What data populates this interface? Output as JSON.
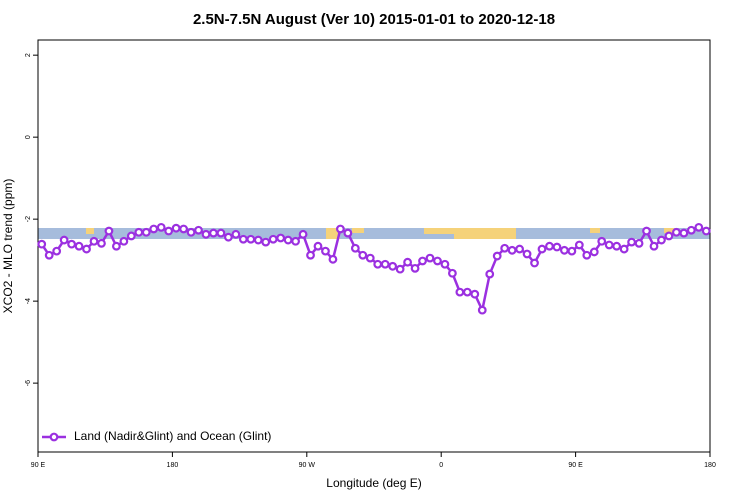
{
  "chart_data": {
    "type": "line",
    "title": "2.5N-7.5N August (Ver 10)   2015-01-01 to 2020-12-18",
    "x_label": "Longitude (deg E)",
    "y_label": "XCO2 - MLO trend (ppm)",
    "xlim": [
      90,
      540
    ],
    "ylim": [
      -7.68,
      2.37
    ],
    "xticks": [
      {
        "value": 90,
        "label": "90 E"
      },
      {
        "value": 180,
        "label": "180"
      },
      {
        "value": 270,
        "label": "90 W"
      },
      {
        "value": 360,
        "label": "0"
      },
      {
        "value": 450,
        "label": "90 E"
      },
      {
        "value": 540,
        "label": "180"
      }
    ],
    "yticks": [
      2,
      0,
      -2,
      -4,
      -6
    ],
    "legend": "bottom-left",
    "x": [
      92.5,
      97.5,
      102.5,
      107.5,
      112.5,
      117.5,
      122.5,
      127.5,
      132.5,
      137.5,
      142.5,
      147.5,
      152.5,
      157.5,
      162.5,
      167.5,
      172.5,
      177.5,
      182.5,
      187.5,
      192.5,
      197.5,
      202.5,
      207.5,
      212.5,
      217.5,
      222.5,
      227.5,
      232.5,
      237.5,
      242.5,
      247.5,
      252.5,
      257.5,
      262.5,
      267.5,
      272.5,
      277.5,
      282.5,
      287.5,
      292.5,
      297.5,
      302.5,
      307.5,
      312.5,
      317.5,
      322.5,
      327.5,
      332.5,
      337.5,
      342.5,
      347.5,
      352.5,
      357.5,
      362.5,
      367.5,
      372.5,
      377.5,
      382.5,
      387.5,
      392.5,
      397.5,
      402.5,
      407.5,
      412.5,
      417.5,
      422.5,
      427.5,
      432.5,
      437.5,
      442.5,
      447.5,
      452.5,
      457.5,
      462.5,
      467.5,
      472.5,
      477.5,
      482.5,
      487.5,
      492.5,
      497.5,
      502.5,
      507.5,
      512.5,
      517.5,
      522.5,
      527.5,
      532.5,
      537.5
    ],
    "series": [
      {
        "name": "Land (Nadir&Glint) and Ocean (Glint)",
        "color": "#9b30e0",
        "values": [
          -2.61,
          -2.88,
          -2.78,
          -2.51,
          -2.61,
          -2.66,
          -2.73,
          -2.54,
          -2.59,
          -2.29,
          -2.66,
          -2.54,
          -2.41,
          -2.32,
          -2.32,
          -2.24,
          -2.2,
          -2.29,
          -2.22,
          -2.24,
          -2.32,
          -2.27,
          -2.37,
          -2.34,
          -2.34,
          -2.44,
          -2.37,
          -2.49,
          -2.49,
          -2.51,
          -2.56,
          -2.49,
          -2.46,
          -2.51,
          -2.54,
          -2.37,
          -2.88,
          -2.66,
          -2.78,
          -2.98,
          -2.24,
          -2.34,
          -2.71,
          -2.88,
          -2.95,
          -3.1,
          -3.1,
          -3.15,
          -3.22,
          -3.05,
          -3.2,
          -3.02,
          -2.95,
          -3.02,
          -3.1,
          -3.32,
          -3.78,
          -3.78,
          -3.83,
          -4.22,
          -3.34,
          -2.9,
          -2.71,
          -2.76,
          -2.73,
          -2.85,
          -3.07,
          -2.73,
          -2.66,
          -2.68,
          -2.76,
          -2.78,
          -2.63,
          -2.88,
          -2.8,
          -2.54,
          -2.63,
          -2.66,
          -2.73,
          -2.56,
          -2.59,
          -2.29,
          -2.66,
          -2.51,
          -2.41,
          -2.32,
          -2.34,
          -2.27,
          -2.2,
          -2.29
        ]
      }
    ]
  }
}
